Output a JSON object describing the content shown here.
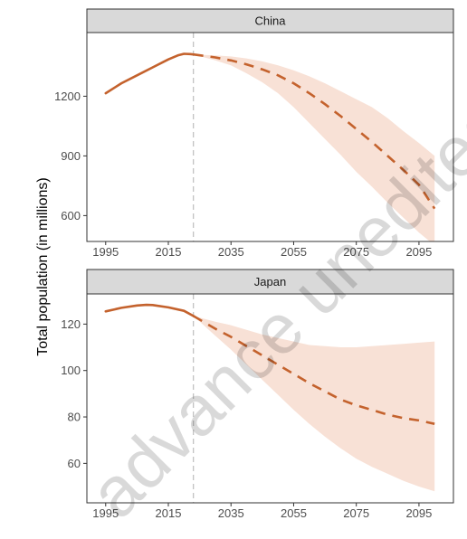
{
  "watermark": "advance unedited",
  "colors": {
    "line": "#c4622d",
    "band": "#f8e1d6",
    "strip_bg": "#d9d9d9",
    "divider": "#bdbdbd",
    "frame": "#333333"
  },
  "chart_data": {
    "type": "line",
    "ylabel": "Total population (in millions)",
    "xlabel": "",
    "projection_start_year": 2023,
    "legend": "none",
    "grid": false,
    "panels": [
      {
        "title": "China",
        "xlim": [
          1989,
          2106
        ],
        "ylim": [
          470,
          1520
        ],
        "x_ticks": [
          1995,
          2015,
          2035,
          2055,
          2075,
          2095
        ],
        "y_ticks": [
          600,
          900,
          1200
        ],
        "historical": {
          "x": [
            1995,
            2000,
            2005,
            2010,
            2015,
            2018,
            2020,
            2022,
            2023
          ],
          "y": [
            1215,
            1265,
            1305,
            1345,
            1385,
            1405,
            1413,
            1412,
            1410
          ]
        },
        "projection": {
          "x": [
            2023,
            2030,
            2035,
            2040,
            2045,
            2050,
            2055,
            2060,
            2065,
            2070,
            2075,
            2080,
            2085,
            2090,
            2095,
            2100
          ],
          "median": [
            1410,
            1395,
            1380,
            1360,
            1335,
            1305,
            1265,
            1215,
            1160,
            1100,
            1035,
            970,
            900,
            830,
            755,
            635
          ],
          "lower": [
            1410,
            1380,
            1355,
            1315,
            1270,
            1215,
            1145,
            1065,
            985,
            905,
            820,
            745,
            665,
            590,
            515,
            450
          ],
          "upper": [
            1410,
            1405,
            1400,
            1390,
            1375,
            1355,
            1330,
            1300,
            1265,
            1225,
            1185,
            1145,
            1090,
            1025,
            965,
            900
          ]
        }
      },
      {
        "title": "Japan",
        "xlim": [
          1989,
          2106
        ],
        "ylim": [
          43,
          133
        ],
        "x_ticks": [
          1995,
          2015,
          2035,
          2055,
          2075,
          2095
        ],
        "y_ticks": [
          60,
          80,
          100,
          120
        ],
        "historical": {
          "x": [
            1995,
            2000,
            2005,
            2008,
            2010,
            2015,
            2020,
            2023
          ],
          "y": [
            125.5,
            127,
            128,
            128.3,
            128.2,
            127.2,
            125.7,
            123.5
          ]
        },
        "projection": {
          "x": [
            2023,
            2030,
            2035,
            2040,
            2045,
            2050,
            2055,
            2060,
            2065,
            2070,
            2075,
            2080,
            2085,
            2090,
            2095,
            2100
          ],
          "median": [
            123.5,
            118,
            114.5,
            110.5,
            106.5,
            102.5,
            98.5,
            94.5,
            91,
            87.5,
            85,
            83,
            81,
            79.5,
            78.5,
            77
          ],
          "lower": [
            123.5,
            115,
            109,
            102.5,
            96,
            89.5,
            83,
            77,
            71.5,
            66.5,
            62,
            58.5,
            55.5,
            52.5,
            50,
            48
          ],
          "upper": [
            123.5,
            121,
            119.5,
            117.5,
            115.5,
            114,
            112.5,
            111,
            110.5,
            110,
            110,
            110.5,
            111,
            111.5,
            112,
            112.5
          ]
        }
      }
    ]
  }
}
